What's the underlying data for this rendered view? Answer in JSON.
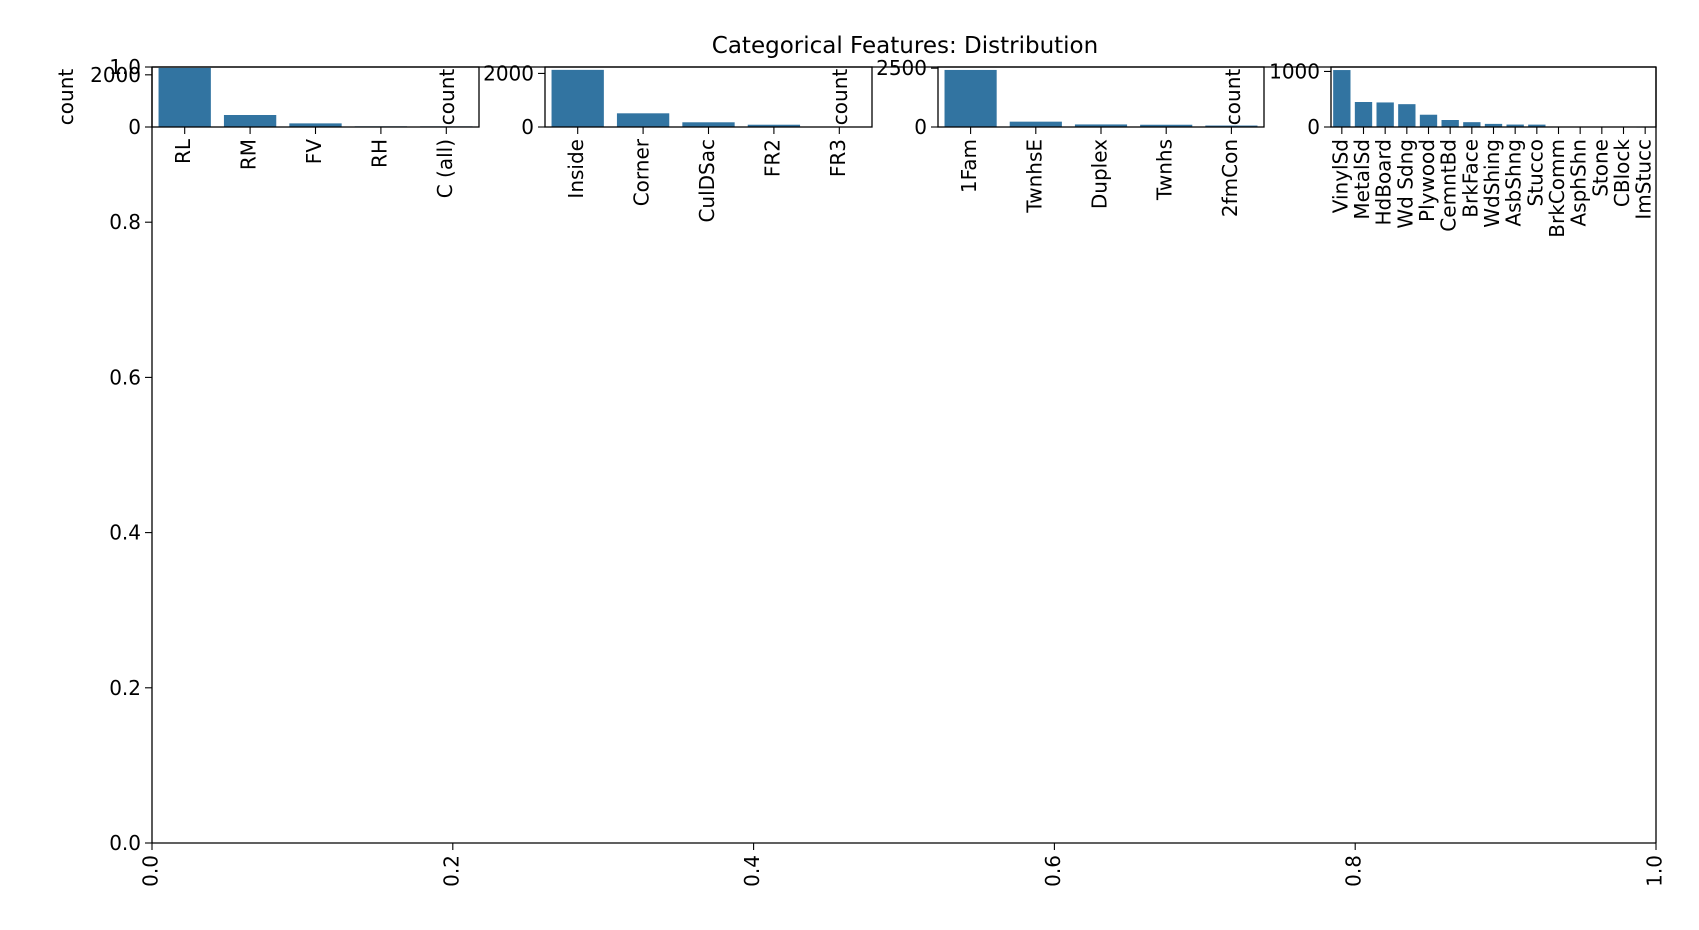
{
  "chart_data": {
    "title": "Categorical Features: Distribution",
    "background": {
      "type": "empty",
      "xlim": [
        0.0,
        1.0
      ],
      "ylim": [
        0.0,
        1.0
      ],
      "xticks": [
        "0.0",
        "0.2",
        "0.4",
        "0.6",
        "0.8",
        "1.0"
      ],
      "yticks": [
        "0.0",
        "0.2",
        "0.4",
        "0.6",
        "0.8",
        "1.0"
      ]
    },
    "panels": [
      {
        "type": "bar",
        "categories": [
          "RL",
          "RM",
          "FV",
          "RH",
          "C (all)"
        ],
        "values": [
          2265,
          460,
          139,
          26,
          25
        ],
        "ylabel": "count",
        "ylim": [
          0,
          2300
        ],
        "yticks": [
          0,
          2000
        ],
        "color": "#3274a1"
      },
      {
        "type": "bar",
        "categories": [
          "Inside",
          "Corner",
          "CulDSac",
          "FR2",
          "FR3"
        ],
        "values": [
          2133,
          511,
          176,
          85,
          14
        ],
        "ylabel": "count",
        "ylim": [
          0,
          2240
        ],
        "yticks": [
          0,
          2000
        ],
        "color": "#3274a1"
      },
      {
        "type": "bar",
        "categories": [
          "1Fam",
          "TwnhsE",
          "Duplex",
          "Twnhs",
          "2fmCon"
        ],
        "values": [
          2425,
          227,
          109,
          96,
          62
        ],
        "ylabel": "count",
        "ylim": [
          0,
          2550
        ],
        "yticks": [
          0,
          2500
        ],
        "color": "#3274a1"
      },
      {
        "type": "bar",
        "categories": [
          "VinylSd",
          "MetalSd",
          "HdBoard",
          "Wd Sdng",
          "Plywood",
          "CemntBd",
          "BrkFace",
          "WdShing",
          "AsbShng",
          "Stucco",
          "BrkComm",
          "AsphShn",
          "Stone",
          "CBlock",
          "ImStucc"
        ],
        "values": [
          1025,
          450,
          442,
          411,
          221,
          126,
          87,
          56,
          44,
          43,
          6,
          4,
          2,
          2,
          1
        ],
        "ylabel": "count",
        "ylim": [
          0,
          1080
        ],
        "yticks": [
          0,
          1000
        ],
        "color": "#3274a1"
      }
    ]
  }
}
